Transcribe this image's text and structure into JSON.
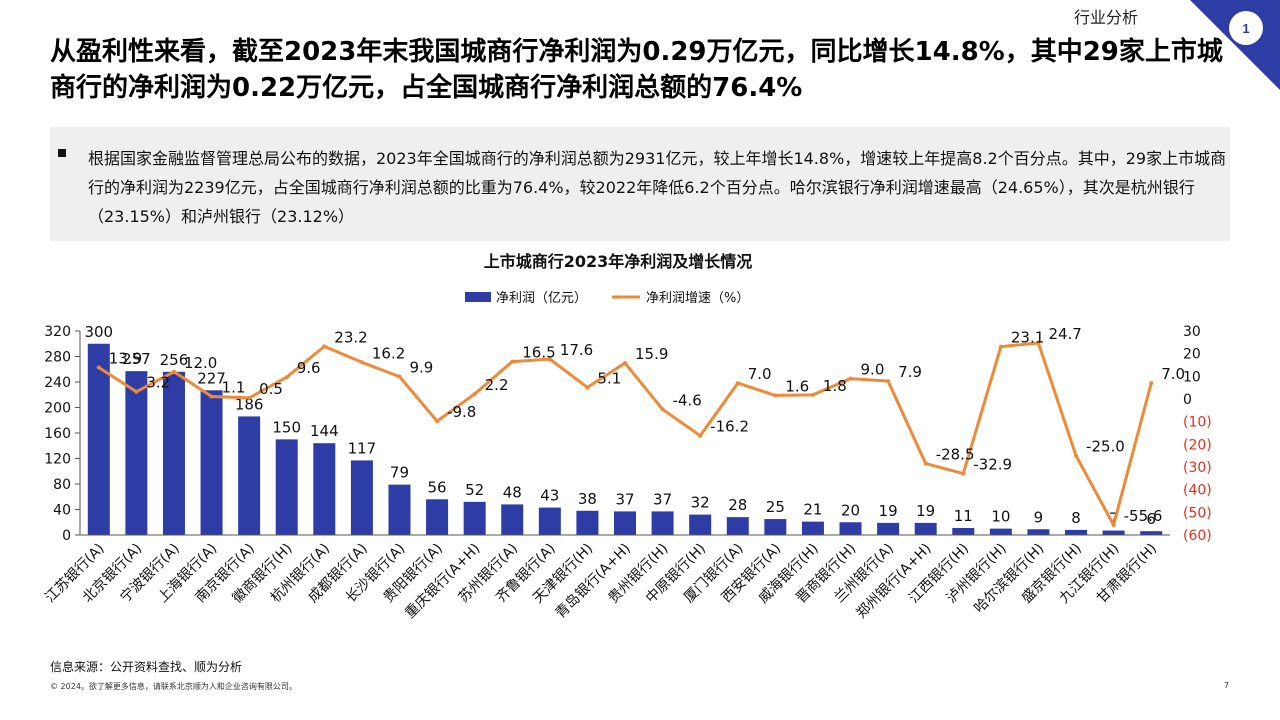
{
  "header": {
    "section_label": "行业分析",
    "page_badge": "1",
    "headline": "从盈利性来看，截至2023年末我国城商行净利润为0.29万亿元，同比增长14.8%，其中29家上市城商行的净利润为0.22万亿元，占全国城商行净利润总额的76.4%"
  },
  "summary": {
    "text": "根据国家金融监督管理总局公布的数据，2023年全国城商行的净利润总额为2931亿元，较上年增长14.8%，增速较上年提高8.2个百分点。其中，29家上市城商行的净利润为2239亿元，占全国城商行净利润总额的比重为76.4%，较2022年降低6.2个百分点。哈尔滨银行净利润增速最高（24.65%），其次是杭州银行（23.15%）和泸州银行（23.12%）"
  },
  "colors": {
    "bar": "#2E3CA5",
    "line": "#ED8A3A",
    "accent": "#2E3CA5",
    "negative_tick": "#E03020"
  },
  "chart_data": {
    "type": "bar",
    "title": "上市城商行2023年净利润及增长情况",
    "categories": [
      "江苏银行(A)",
      "北京银行(A)",
      "宁波银行(A)",
      "上海银行(A)",
      "南京银行(A)",
      "徽商银行(H)",
      "杭州银行(A)",
      "成都银行(A)",
      "长沙银行(A)",
      "贵阳银行(A)",
      "重庆银行(A+H)",
      "苏州银行(A)",
      "齐鲁银行(A)",
      "天津银行(H)",
      "青岛银行(A+H)",
      "贵州银行(H)",
      "中原银行(H)",
      "厦门银行(A)",
      "西安银行(A)",
      "威海银行(H)",
      "晋商银行(H)",
      "兰州银行(A)",
      "郑州银行(A+H)",
      "江西银行(H)",
      "泸州银行(H)",
      "哈尔滨银行(H)",
      "盛京银行(H)",
      "九江银行(H)",
      "甘肃银行(H)"
    ],
    "series": [
      {
        "name": "净利润（亿元）",
        "type": "bar",
        "axis": "left",
        "values": [
          300,
          257,
          256,
          227,
          186,
          150,
          144,
          117,
          79,
          56,
          52,
          48,
          43,
          38,
          37,
          37,
          32,
          28,
          25,
          21,
          20,
          19,
          19,
          11,
          10,
          9,
          8,
          7,
          6
        ]
      },
      {
        "name": "净利润增速（%）",
        "type": "line",
        "axis": "right",
        "values": [
          13.9,
          3.2,
          12.0,
          1.1,
          0.5,
          9.6,
          23.2,
          16.2,
          9.9,
          -9.8,
          2.2,
          16.5,
          17.6,
          5.1,
          15.9,
          -4.6,
          -16.2,
          7.0,
          1.6,
          1.8,
          9.0,
          7.9,
          -28.5,
          -32.9,
          23.1,
          24.7,
          -25.0,
          -55.6,
          7.0
        ]
      }
    ],
    "bar_labels": [
      "300",
      "257",
      "256",
      "227",
      "186",
      "150",
      "144",
      "117",
      "79",
      "56",
      "52",
      "48",
      "43",
      "38",
      "37",
      "37",
      "32",
      "28",
      "25",
      "21",
      "20",
      "19",
      "19",
      "11",
      "10",
      "9",
      "8",
      "7",
      "6"
    ],
    "line_labels": [
      "13.9",
      "3.2",
      "12.0",
      "1.1",
      "0.5",
      "9.6",
      "23.2",
      "16.2",
      "9.9",
      "-9.8",
      "2.2",
      "16.5",
      "17.6",
      "5.1",
      "15.9",
      "-4.6",
      "-16.2",
      "7.0",
      "1.6",
      "1.8",
      "9.0",
      "7.9",
      "-28.5",
      "-32.9",
      "23.1",
      "24.7",
      "-25.0",
      "-55.6",
      "7.0"
    ],
    "y_left": {
      "range": [
        0,
        320
      ],
      "ticks": [
        "0",
        "40",
        "80",
        "120",
        "160",
        "200",
        "240",
        "280",
        "320"
      ],
      "tick_values": [
        0,
        40,
        80,
        120,
        160,
        200,
        240,
        280,
        320
      ]
    },
    "y_right": {
      "range": [
        -60,
        30
      ],
      "ticks": [
        "(60)",
        "(50)",
        "(40)",
        "(30)",
        "(20)",
        "(10)",
        "0",
        "10",
        "20",
        "30"
      ],
      "tick_values": [
        -60,
        -50,
        -40,
        -30,
        -20,
        -10,
        0,
        10,
        20,
        30
      ]
    },
    "legend_position": "top-center",
    "grid": false
  },
  "footer": {
    "source": "信息来源：公开资料查找、顺为分析",
    "copyright": "© 2024。欲了解更多信息，请联系北京顺为人和企业咨询有限公司。",
    "page_number": "7"
  }
}
